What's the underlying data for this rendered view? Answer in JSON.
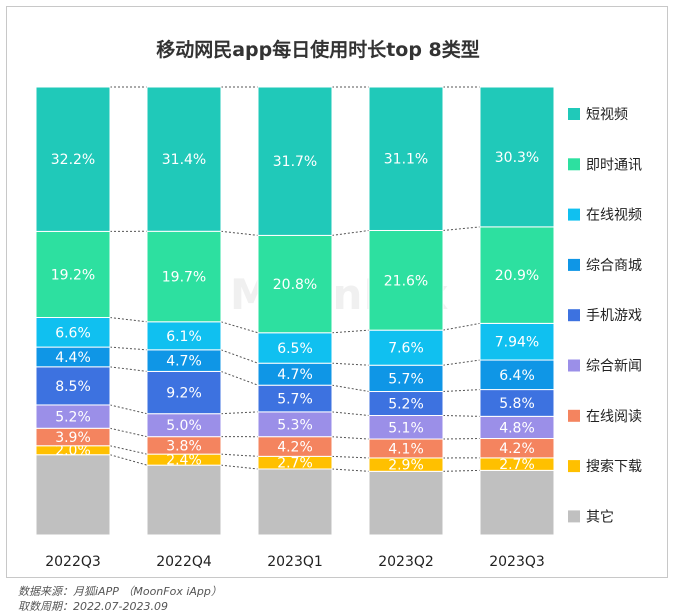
{
  "chart_data": {
    "type": "stacked-bar-100",
    "title": "移动网民app每日使用时长top 8类型",
    "categories": [
      "2022Q3",
      "2022Q4",
      "2023Q1",
      "2023Q2",
      "2023Q3"
    ],
    "series": [
      {
        "name": "其它",
        "color": "#c0c0c0",
        "values": [
          17.9,
          15.2,
          14.1,
          13.8,
          14.0
        ],
        "labels": [
          "",
          "",
          "",
          "",
          ""
        ]
      },
      {
        "name": "搜索下载",
        "color": "#ffc000",
        "values": [
          2.0,
          2.4,
          2.7,
          2.9,
          2.7
        ],
        "labels": [
          "2.0%",
          "2.4%",
          "2.7%",
          "2.9%",
          "2.7%"
        ]
      },
      {
        "name": "在线阅读",
        "color": "#f4845f",
        "values": [
          3.9,
          3.8,
          4.2,
          4.1,
          4.2
        ],
        "labels": [
          "3.9%",
          "3.8%",
          "4.2%",
          "4.1%",
          "4.2%"
        ]
      },
      {
        "name": "综合新闻",
        "color": "#9b8fe8",
        "values": [
          5.2,
          5.0,
          5.3,
          5.1,
          4.8
        ],
        "labels": [
          "5.2%",
          "5.0%",
          "5.3%",
          "5.1%",
          "4.8%"
        ]
      },
      {
        "name": "手机游戏",
        "color": "#3d72e0",
        "values": [
          8.5,
          9.2,
          5.7,
          5.2,
          5.8
        ],
        "labels": [
          "8.5%",
          "9.2%",
          "5.7%",
          "5.2%",
          "5.8%"
        ]
      },
      {
        "name": "综合商城",
        "color": "#0f96e6",
        "values": [
          4.4,
          4.7,
          4.7,
          5.7,
          6.4
        ],
        "labels": [
          "4.4%",
          "4.7%",
          "4.7%",
          "5.7%",
          "6.4%"
        ]
      },
      {
        "name": "在线视频",
        "color": "#10c0f0",
        "values": [
          6.6,
          6.1,
          6.5,
          7.6,
          7.94
        ],
        "labels": [
          "6.6%",
          "6.1%",
          "6.5%",
          "7.6%",
          "7.94%"
        ]
      },
      {
        "name": "即时通讯",
        "color": "#2de0a0",
        "values": [
          19.2,
          19.7,
          20.8,
          21.6,
          20.9
        ],
        "labels": [
          "19.2%",
          "19.7%",
          "20.8%",
          "21.6%",
          "20.9%"
        ]
      },
      {
        "name": "短视频",
        "color": "#20c9b9",
        "values": [
          32.2,
          31.4,
          31.7,
          31.1,
          30.3
        ],
        "labels": [
          "32.2%",
          "31.4%",
          "31.7%",
          "31.1%",
          "30.3%"
        ]
      }
    ],
    "legend": [
      "短视频",
      "即时通讯",
      "在线视频",
      "综合商城",
      "手机游戏",
      "综合新闻",
      "在线阅读",
      "搜索下载",
      "其它"
    ],
    "legend_position": "right"
  },
  "watermark": "MoonFox",
  "source_line1": "数据来源：月狐iAPP （MoonFox iApp）",
  "source_line2": "取数周期：2022.07-2023.09"
}
